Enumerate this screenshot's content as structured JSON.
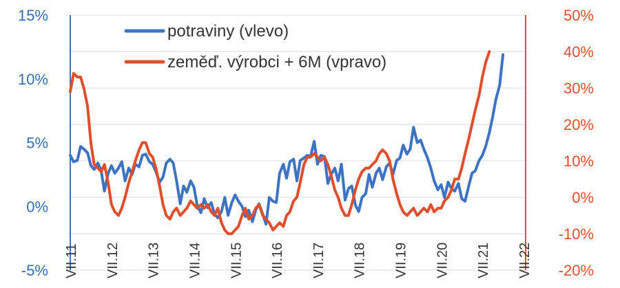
{
  "chart_data": {
    "type": "line",
    "title": "",
    "xlabel": "",
    "ylabel_left": "",
    "ylabel_right": "",
    "x_tick_labels": [
      "VII.11",
      "VII.12",
      "VII.13",
      "VII.14",
      "VII.15",
      "VII.16",
      "VII.17",
      "VII.18",
      "VII.19",
      "VII.20",
      "VII.21",
      "VII.22"
    ],
    "ylim_left": [
      -5,
      15
    ],
    "yticks_left": [
      "-5%",
      "0%",
      "5%",
      "10%",
      "15%"
    ],
    "ylim_right": [
      -20,
      50
    ],
    "yticks_right": [
      "-20%",
      "-10%",
      "0%",
      "10%",
      "20%",
      "30%",
      "40%",
      "50%"
    ],
    "grid": "horizontal, right axis",
    "legend_position": "top-center",
    "series": [
      {
        "name": "potraviny (vlevo)",
        "axis": "left",
        "color": "#3c73c2",
        "points": [
          [
            2011.5,
            4.0
          ],
          [
            2011.58,
            3.5
          ],
          [
            2011.67,
            3.6
          ],
          [
            2011.75,
            4.7
          ],
          [
            2011.83,
            4.5
          ],
          [
            2011.92,
            4.2
          ],
          [
            2012.0,
            3.2
          ],
          [
            2012.08,
            2.9
          ],
          [
            2012.17,
            3.4
          ],
          [
            2012.25,
            2.8
          ],
          [
            2012.33,
            1.2
          ],
          [
            2012.42,
            2.6
          ],
          [
            2012.5,
            3.2
          ],
          [
            2012.58,
            2.6
          ],
          [
            2012.67,
            3.0
          ],
          [
            2012.75,
            3.5
          ],
          [
            2012.83,
            2.0
          ],
          [
            2012.92,
            3.0
          ],
          [
            2013.0,
            2.5
          ],
          [
            2013.08,
            3.3
          ],
          [
            2013.17,
            3.1
          ],
          [
            2013.25,
            4.0
          ],
          [
            2013.33,
            4.1
          ],
          [
            2013.42,
            3.5
          ],
          [
            2013.5,
            3.3
          ],
          [
            2013.58,
            2.7
          ],
          [
            2013.67,
            1.9
          ],
          [
            2013.75,
            2.3
          ],
          [
            2013.83,
            3.4
          ],
          [
            2013.92,
            3.7
          ],
          [
            2014.0,
            3.4
          ],
          [
            2014.08,
            2.0
          ],
          [
            2014.17,
            0.2
          ],
          [
            2014.25,
            1.6
          ],
          [
            2014.33,
            1.1
          ],
          [
            2014.42,
            2.0
          ],
          [
            2014.5,
            1.5
          ],
          [
            2014.58,
            0.1
          ],
          [
            2014.67,
            -0.5
          ],
          [
            2014.75,
            0.6
          ],
          [
            2014.83,
            -0.1
          ],
          [
            2014.92,
            0.3
          ],
          [
            2015.0,
            -0.6
          ],
          [
            2015.08,
            -0.9
          ],
          [
            2015.17,
            -0.4
          ],
          [
            2015.25,
            0.7
          ],
          [
            2015.33,
            -0.7
          ],
          [
            2015.42,
            0.3
          ],
          [
            2015.5,
            0.9
          ],
          [
            2015.58,
            0.4
          ],
          [
            2015.67,
            0.0
          ],
          [
            2015.75,
            -0.8
          ],
          [
            2015.83,
            -0.3
          ],
          [
            2015.92,
            -1.2
          ],
          [
            2016.0,
            -0.3
          ],
          [
            2016.08,
            0.2
          ],
          [
            2016.17,
            -0.6
          ],
          [
            2016.25,
            -1.4
          ],
          [
            2016.33,
            0.7
          ],
          [
            2016.42,
            0.4
          ],
          [
            2016.5,
            0.3
          ],
          [
            2016.58,
            2.6
          ],
          [
            2016.67,
            3.3
          ],
          [
            2016.75,
            2.2
          ],
          [
            2016.83,
            3.5
          ],
          [
            2016.92,
            3.7
          ],
          [
            2017.0,
            2.0
          ],
          [
            2017.08,
            3.6
          ],
          [
            2017.17,
            3.8
          ],
          [
            2017.25,
            4.0
          ],
          [
            2017.33,
            3.9
          ],
          [
            2017.42,
            5.1
          ],
          [
            2017.5,
            3.3
          ],
          [
            2017.58,
            4.0
          ],
          [
            2017.67,
            3.9
          ],
          [
            2017.75,
            1.8
          ],
          [
            2017.83,
            2.5
          ],
          [
            2017.92,
            3.0
          ],
          [
            2018.0,
            2.0
          ],
          [
            2018.08,
            3.3
          ],
          [
            2018.17,
            0.5
          ],
          [
            2018.25,
            1.4
          ],
          [
            2018.33,
            1.6
          ],
          [
            2018.42,
            0.1
          ],
          [
            2018.5,
            -0.4
          ],
          [
            2018.58,
            0.7
          ],
          [
            2018.67,
            1.0
          ],
          [
            2018.75,
            2.5
          ],
          [
            2018.83,
            1.5
          ],
          [
            2018.92,
            2.6
          ],
          [
            2019.0,
            3.0
          ],
          [
            2019.08,
            2.1
          ],
          [
            2019.17,
            3.1
          ],
          [
            2019.25,
            3.4
          ],
          [
            2019.33,
            2.5
          ],
          [
            2019.42,
            3.6
          ],
          [
            2019.5,
            3.8
          ],
          [
            2019.58,
            4.8
          ],
          [
            2019.67,
            4.1
          ],
          [
            2019.75,
            4.5
          ],
          [
            2019.83,
            6.2
          ],
          [
            2019.92,
            5.0
          ],
          [
            2020.0,
            5.2
          ],
          [
            2020.08,
            4.5
          ],
          [
            2020.17,
            3.8
          ],
          [
            2020.25,
            3.0
          ],
          [
            2020.33,
            2.0
          ],
          [
            2020.42,
            1.3
          ],
          [
            2020.5,
            1.7
          ],
          [
            2020.58,
            0.7
          ],
          [
            2020.67,
            1.9
          ],
          [
            2020.75,
            1.4
          ],
          [
            2020.83,
            1.2
          ],
          [
            2020.92,
            1.8
          ],
          [
            2021.0,
            0.6
          ],
          [
            2021.08,
            0.4
          ],
          [
            2021.17,
            1.6
          ],
          [
            2021.25,
            2.6
          ],
          [
            2021.33,
            2.8
          ],
          [
            2021.42,
            3.6
          ],
          [
            2021.5,
            4.0
          ],
          [
            2021.58,
            4.7
          ],
          [
            2021.67,
            5.8
          ],
          [
            2021.75,
            7.0
          ],
          [
            2021.83,
            8.4
          ],
          [
            2021.92,
            9.5
          ],
          [
            2022.0,
            11.9
          ]
        ]
      },
      {
        "name": "zeměď. výrobci + 6M (vpravo)",
        "axis": "right",
        "color": "#e04e2b",
        "points": [
          [
            2011.5,
            29
          ],
          [
            2011.58,
            34
          ],
          [
            2011.67,
            33
          ],
          [
            2011.75,
            33
          ],
          [
            2011.83,
            30
          ],
          [
            2011.92,
            25
          ],
          [
            2012.0,
            15
          ],
          [
            2012.08,
            9
          ],
          [
            2012.17,
            8
          ],
          [
            2012.25,
            7
          ],
          [
            2012.33,
            9
          ],
          [
            2012.42,
            4
          ],
          [
            2012.5,
            -2
          ],
          [
            2012.58,
            -4
          ],
          [
            2012.67,
            -5
          ],
          [
            2012.75,
            -3
          ],
          [
            2012.83,
            0
          ],
          [
            2012.92,
            4
          ],
          [
            2013.0,
            7
          ],
          [
            2013.08,
            10
          ],
          [
            2013.17,
            13
          ],
          [
            2013.25,
            15
          ],
          [
            2013.33,
            15
          ],
          [
            2013.42,
            12
          ],
          [
            2013.5,
            11
          ],
          [
            2013.58,
            8
          ],
          [
            2013.67,
            3
          ],
          [
            2013.75,
            -2
          ],
          [
            2013.83,
            -5
          ],
          [
            2013.92,
            -6
          ],
          [
            2014.0,
            -4
          ],
          [
            2014.08,
            -3
          ],
          [
            2014.17,
            -5
          ],
          [
            2014.25,
            -4
          ],
          [
            2014.33,
            -3
          ],
          [
            2014.42,
            -1
          ],
          [
            2014.5,
            -2
          ],
          [
            2014.58,
            -3
          ],
          [
            2014.67,
            -2
          ],
          [
            2014.75,
            -3
          ],
          [
            2014.83,
            -2
          ],
          [
            2014.92,
            -4
          ],
          [
            2015.0,
            -5
          ],
          [
            2015.08,
            -3
          ],
          [
            2015.17,
            -7
          ],
          [
            2015.25,
            -9
          ],
          [
            2015.33,
            -10
          ],
          [
            2015.42,
            -10
          ],
          [
            2015.5,
            -9
          ],
          [
            2015.58,
            -8
          ],
          [
            2015.67,
            -5
          ],
          [
            2015.75,
            -3
          ],
          [
            2015.83,
            -6
          ],
          [
            2015.92,
            -5
          ],
          [
            2016.0,
            -3
          ],
          [
            2016.08,
            -2
          ],
          [
            2016.17,
            -5
          ],
          [
            2016.25,
            -6
          ],
          [
            2016.33,
            -7
          ],
          [
            2016.42,
            -9
          ],
          [
            2016.5,
            -8
          ],
          [
            2016.58,
            -7
          ],
          [
            2016.67,
            -8
          ],
          [
            2016.75,
            -5
          ],
          [
            2016.83,
            -4
          ],
          [
            2016.92,
            -1
          ],
          [
            2017.0,
            0
          ],
          [
            2017.08,
            4
          ],
          [
            2017.17,
            9
          ],
          [
            2017.25,
            11
          ],
          [
            2017.33,
            11
          ],
          [
            2017.42,
            12
          ],
          [
            2017.5,
            11
          ],
          [
            2017.58,
            10
          ],
          [
            2017.67,
            11
          ],
          [
            2017.75,
            9
          ],
          [
            2017.83,
            6
          ],
          [
            2017.92,
            2
          ],
          [
            2018.0,
            0
          ],
          [
            2018.08,
            -3
          ],
          [
            2018.17,
            -5
          ],
          [
            2018.25,
            -5
          ],
          [
            2018.33,
            -2
          ],
          [
            2018.42,
            2
          ],
          [
            2018.5,
            5
          ],
          [
            2018.58,
            7
          ],
          [
            2018.67,
            8
          ],
          [
            2018.75,
            8
          ],
          [
            2018.83,
            9
          ],
          [
            2018.92,
            10
          ],
          [
            2019.0,
            12
          ],
          [
            2019.08,
            13
          ],
          [
            2019.17,
            12
          ],
          [
            2019.25,
            10
          ],
          [
            2019.33,
            5
          ],
          [
            2019.42,
            1
          ],
          [
            2019.5,
            -2
          ],
          [
            2019.58,
            -4
          ],
          [
            2019.67,
            -5
          ],
          [
            2019.75,
            -4
          ],
          [
            2019.83,
            -3
          ],
          [
            2019.92,
            -5
          ],
          [
            2020.0,
            -4
          ],
          [
            2020.08,
            -3
          ],
          [
            2020.17,
            -4
          ],
          [
            2020.25,
            -2
          ],
          [
            2020.33,
            -4
          ],
          [
            2020.42,
            -3
          ],
          [
            2020.5,
            -3
          ],
          [
            2020.58,
            -1
          ],
          [
            2020.67,
            0
          ],
          [
            2020.75,
            2
          ],
          [
            2020.83,
            5
          ],
          [
            2020.92,
            5
          ],
          [
            2021.0,
            8
          ],
          [
            2021.08,
            12
          ],
          [
            2021.17,
            16
          ],
          [
            2021.25,
            20
          ],
          [
            2021.33,
            24
          ],
          [
            2021.42,
            28
          ],
          [
            2021.5,
            33
          ],
          [
            2021.58,
            37
          ],
          [
            2021.67,
            40
          ]
        ]
      }
    ]
  }
}
